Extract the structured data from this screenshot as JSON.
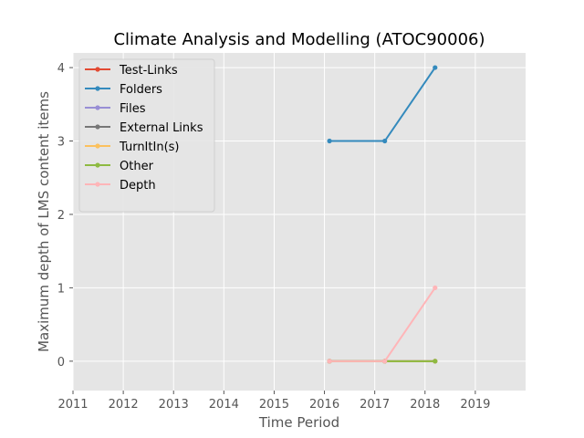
{
  "chart_data": {
    "type": "line",
    "title": "Climate Analysis and Modelling (ATOC90006)",
    "xlabel": "Time Period",
    "ylabel": "Maximum depth of LMS content items",
    "xlim": [
      2011,
      2020
    ],
    "ylim": [
      -0.4,
      4.2
    ],
    "xticks": [
      "2011",
      "2012",
      "2013",
      "2014",
      "2015",
      "2016",
      "2017",
      "2018",
      "2019"
    ],
    "yticks": [
      "0",
      "1",
      "2",
      "3",
      "4"
    ],
    "grid": true,
    "legend_position": "top-left",
    "x": [
      2016.1,
      2017.2,
      2018.2
    ],
    "series": [
      {
        "name": "Test-Links",
        "color": "#E24A33",
        "values": [
          0,
          0,
          0
        ]
      },
      {
        "name": "Folders",
        "color": "#348ABD",
        "values": [
          3,
          3,
          4
        ]
      },
      {
        "name": "Files",
        "color": "#988ED5",
        "values": [
          0,
          0,
          0
        ]
      },
      {
        "name": "External Links",
        "color": "#777777",
        "values": [
          0,
          0,
          0
        ]
      },
      {
        "name": "TurnItIn(s)",
        "color": "#FBC15E",
        "values": [
          0,
          0,
          0
        ]
      },
      {
        "name": "Other",
        "color": "#8EBA42",
        "values": [
          0,
          0,
          0
        ]
      },
      {
        "name": "Depth",
        "color": "#FFB5B8",
        "values": [
          0,
          0,
          1
        ]
      }
    ]
  }
}
